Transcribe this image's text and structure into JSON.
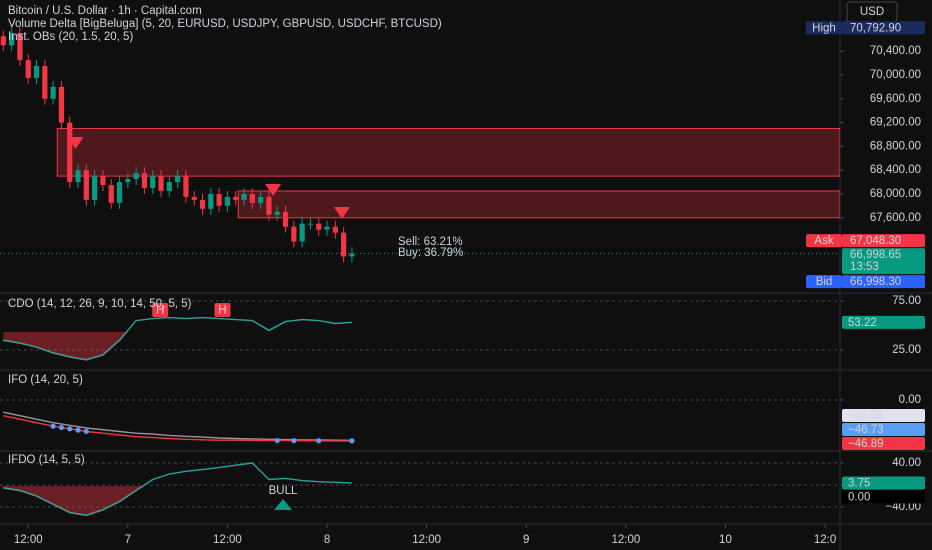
{
  "currency": "USD",
  "chart_data": [
    {
      "type": "candlestick",
      "title": "Bitcoin / U.S. Dollar · 1h · Capital.com",
      "subtitles": [
        "Volume Delta [BigBeluga] (5, 20, EURUSD, USDJPY, GBPUSD, USDCHF, BTCUSD)",
        "Inst. OBs (20, 1.5, 20, 5)"
      ],
      "up_color": "#089981",
      "down_color": "#f23645",
      "open": [
        70650,
        70500,
        70700,
        70250,
        69950,
        70150,
        69600,
        69800,
        69200,
        68200,
        68400,
        67900,
        68300,
        68150,
        67850,
        68200,
        68250,
        68350,
        68100,
        68300,
        68050,
        68200,
        68300,
        67950,
        67900,
        67750,
        68000,
        67800,
        67950,
        67900,
        68000,
        67850,
        67950,
        67650,
        67700,
        67450,
        67200,
        67500,
        67500,
        67400,
        67450,
        67350,
        66950
      ],
      "high": [
        70750,
        70800,
        70800,
        70350,
        70250,
        70250,
        69900,
        69900,
        69300,
        68500,
        68500,
        68400,
        68400,
        68250,
        68300,
        68350,
        68450,
        68450,
        68400,
        68400,
        68300,
        68400,
        68400,
        68050,
        68000,
        68100,
        68100,
        68050,
        68050,
        68100,
        68100,
        68050,
        68050,
        67800,
        67800,
        67550,
        67600,
        67600,
        67600,
        67550,
        67550,
        67450,
        67100
      ],
      "low": [
        70400,
        70400,
        70150,
        69850,
        69850,
        69500,
        69500,
        69100,
        68100,
        68100,
        67800,
        67800,
        68050,
        67750,
        67750,
        68100,
        68150,
        68000,
        68000,
        67950,
        67950,
        68100,
        67850,
        67800,
        67650,
        67650,
        67700,
        67700,
        67800,
        67800,
        67750,
        67750,
        67550,
        67550,
        67350,
        67100,
        67100,
        67400,
        67300,
        67300,
        67250,
        66850,
        66850
      ],
      "close": [
        70500,
        70700,
        70250,
        69950,
        70150,
        69600,
        69800,
        69200,
        68200,
        68400,
        67900,
        68300,
        68150,
        67850,
        68200,
        68250,
        68350,
        68100,
        68300,
        68050,
        68200,
        68300,
        67950,
        67900,
        67750,
        68000,
        67800,
        67950,
        67900,
        68000,
        67850,
        67950,
        67650,
        67700,
        67450,
        67200,
        67500,
        67500,
        67400,
        67450,
        67350,
        66950,
        67000
      ],
      "xlim": [
        -0.4,
        100.8
      ],
      "xticks": [
        {
          "value": 3,
          "label": "12:00"
        },
        {
          "value": 15,
          "label": "7"
        },
        {
          "value": 27,
          "label": "12:00"
        },
        {
          "value": 39,
          "label": "8"
        },
        {
          "value": 51,
          "label": "12:00"
        },
        {
          "value": 63,
          "label": "9"
        },
        {
          "value": 75,
          "label": "12:00"
        },
        {
          "value": 87,
          "label": "10"
        },
        {
          "value": 99,
          "label": "12:0"
        }
      ],
      "ylim": [
        66386,
        71260
      ],
      "yticks": [
        {
          "value": 70400,
          "label": "70,400.00"
        },
        {
          "value": 70000,
          "label": "70,000.00"
        },
        {
          "value": 69600,
          "label": "69,600.00"
        },
        {
          "value": 69200,
          "label": "69,200.00"
        },
        {
          "value": 68800,
          "label": "68,800.00"
        },
        {
          "value": 68400,
          "label": "68,400.00"
        },
        {
          "value": 68000,
          "label": "68,000.00"
        },
        {
          "value": 67600,
          "label": "67,600.00"
        }
      ],
      "grid": false,
      "zones": [
        {
          "top": 69100,
          "bottom": 68300,
          "start": 6.5
        },
        {
          "top": 68050,
          "bottom": 67600,
          "start": 28.3
        }
      ],
      "zone_color": "#f23645",
      "signals": [
        {
          "x": 8.7,
          "y": 68857
        },
        {
          "x": 32.5,
          "y": 68067
        },
        {
          "x": 40.8,
          "y": 67680
        }
      ],
      "annotations": [
        "Sell: 63.21%",
        "Buy: 36.79%"
      ],
      "price_tags": [
        {
          "name": "High",
          "value": 70792.9,
          "label": "70,792.90",
          "color": "#1c2b5e"
        },
        {
          "name": "Ask",
          "value": 67048.3,
          "label": "67,048.30",
          "color": "#f23645"
        },
        {
          "value": 66998.65,
          "label": "66,998.65",
          "time": "13:53",
          "color": "#089981"
        },
        {
          "name": "Bid",
          "value": 66998.3,
          "label": "66,998.30",
          "color": "#2962ff"
        }
      ]
    },
    {
      "type": "line",
      "title": "CDO (14, 12, 26, 9, 10, 14, 50, 5, 5)",
      "x": [
        0,
        2,
        4,
        6,
        8,
        10,
        12,
        14,
        16,
        18,
        20,
        22,
        24,
        26,
        28,
        30,
        32,
        34,
        36,
        38,
        40,
        42
      ],
      "series": [
        {
          "color": "#26a69a",
          "area_color": "#f23645",
          "values": [
            35,
            32,
            28,
            22,
            18,
            15,
            20,
            35,
            55,
            57,
            58,
            57,
            58,
            57,
            56,
            55,
            45,
            54,
            56,
            55,
            52,
            53.22
          ]
        }
      ],
      "xlim": [
        -0.4,
        100.8
      ],
      "ylim": [
        6.6,
        80.1
      ],
      "yticks": [
        {
          "value": 75,
          "label": "75.00"
        },
        {
          "value": 25,
          "label": "25.00"
        }
      ],
      "grid": true,
      "markers": [
        {
          "x": 18.9,
          "label": "H"
        },
        {
          "x": 26.4,
          "label": "H"
        }
      ],
      "tags": [
        {
          "value": 53.22,
          "label": "53.22",
          "color": "#089981",
          "text_color": "#ffffff"
        }
      ]
    },
    {
      "type": "line",
      "title": "IFO (14, 20, 5)",
      "x": [
        0,
        2,
        4,
        6,
        8,
        10,
        12,
        14,
        16,
        18,
        20,
        22,
        24,
        26,
        28,
        30,
        32,
        34,
        36,
        38,
        40,
        42
      ],
      "series": [
        {
          "color": "#9598a1",
          "values": [
            -14,
            -18,
            -22,
            -26,
            -29,
            -32,
            -34,
            -36,
            -38,
            -39,
            -40.5,
            -41.5,
            -42.5,
            -43.5,
            -44,
            -44.5,
            -45,
            -45.3,
            -45.6,
            -45.8,
            -46,
            -46.06
          ]
        },
        {
          "color": "#f23645",
          "values": [
            -18,
            -22,
            -26,
            -30,
            -33,
            -36,
            -38,
            -40,
            -42,
            -43,
            -44,
            -45,
            -45.5,
            -46,
            -46,
            -46.2,
            -46.3,
            -46.5,
            -46.6,
            -46.7,
            -46.8,
            -46.89
          ]
        }
      ],
      "dots": {
        "color": "#5b9cf6",
        "x": [
          6,
          7,
          8,
          9,
          10,
          33,
          35,
          38,
          42
        ],
        "values": [
          -30,
          -31.5,
          -33,
          -34.5,
          -36,
          -46.4,
          -46.5,
          -46.6,
          -46.73
        ]
      },
      "xlim": [
        -0.4,
        100.8
      ],
      "ylim": [
        -57.2,
        32
      ],
      "yticks": [
        {
          "value": 0,
          "label": "0.00"
        }
      ],
      "grid": true,
      "tags": [
        {
          "value": -46.06,
          "label": "−46.06",
          "color": "#e0e3eb",
          "text_color": "#131722"
        },
        {
          "value": -46.73,
          "label": "−46.73",
          "color": "#5b9cf6",
          "text_color": "#131722"
        },
        {
          "value": -46.89,
          "label": "−46.89",
          "color": "#f23645",
          "text_color": "#ffffff"
        }
      ]
    },
    {
      "type": "line",
      "title": "IFDO (14, 5, 5)",
      "x": [
        0,
        2,
        4,
        6,
        8,
        10,
        12,
        14,
        16,
        18,
        20,
        22,
        24,
        26,
        28,
        30,
        32,
        34,
        36,
        38,
        40,
        42
      ],
      "series": [
        {
          "color": "#26a69a",
          "area_color": "#f23645",
          "values": [
            -5,
            -10,
            -20,
            -35,
            -50,
            -55,
            -45,
            -30,
            -10,
            10,
            20,
            25,
            28,
            32,
            36,
            40,
            10,
            12,
            8,
            6,
            5,
            3.75
          ]
        }
      ],
      "xlim": [
        -0.4,
        100.8
      ],
      "ylim": [
        -63.6,
        60
      ],
      "yticks": [
        {
          "value": 40,
          "label": "40.00"
        },
        {
          "value": 0,
          "label": "0.00"
        },
        {
          "value": -40,
          "label": "−40.00"
        }
      ],
      "grid": true,
      "annotation": {
        "x": 33.7,
        "text": "BULL"
      },
      "tags": [
        {
          "value": 3.75,
          "label": "3.75",
          "color": "#089981",
          "text_color": "#ffffff"
        },
        {
          "value": 0,
          "label": "0.00",
          "color": "#000000",
          "text_color": "#ffffff"
        }
      ]
    }
  ]
}
